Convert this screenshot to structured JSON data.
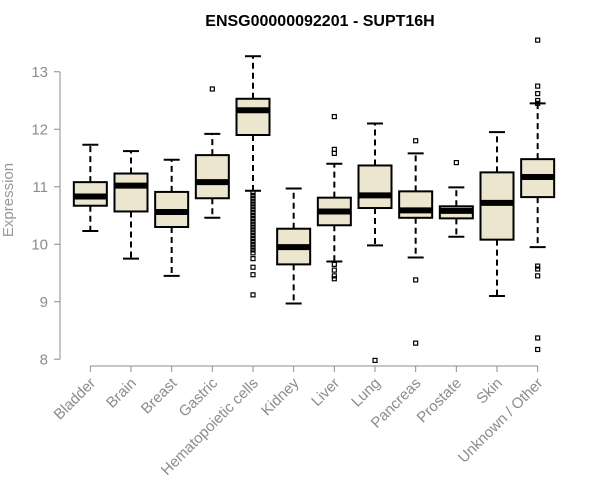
{
  "chart_data": {
    "type": "boxplot",
    "title": "ENSG00000092201 - SUPT16H",
    "xlabel": "",
    "ylabel": "Expression",
    "ylim": [
      7.9,
      13.9
    ],
    "yticks": [
      8,
      9,
      10,
      11,
      12,
      13
    ],
    "grid": false,
    "colors": {
      "box_fill": "#ede6cf",
      "stroke": "#000000",
      "axis": "#8c8c8c"
    },
    "categories": [
      "Bladder",
      "Brain",
      "Breast",
      "Gastric",
      "Hematopoietic cells",
      "Kidney",
      "Liver",
      "Lung",
      "Pancreas",
      "Prostate",
      "Skin",
      "Unknown / Other"
    ],
    "series": [
      {
        "name": "Bladder",
        "min": 10.23,
        "q1": 10.67,
        "median": 10.83,
        "q3": 11.08,
        "max": 11.73,
        "outliers": []
      },
      {
        "name": "Brain",
        "min": 9.75,
        "q1": 10.57,
        "median": 11.02,
        "q3": 11.23,
        "max": 11.62,
        "outliers": []
      },
      {
        "name": "Breast",
        "min": 9.45,
        "q1": 10.3,
        "median": 10.56,
        "q3": 10.91,
        "max": 11.47,
        "outliers": []
      },
      {
        "name": "Gastric",
        "min": 10.46,
        "q1": 10.8,
        "median": 11.08,
        "q3": 11.55,
        "max": 11.92,
        "outliers": [
          12.7
        ]
      },
      {
        "name": "Hematopoietic cells",
        "min": 10.93,
        "q1": 11.9,
        "median": 12.33,
        "q3": 12.53,
        "max": 13.27,
        "outliers": [
          10.9,
          10.85,
          10.8,
          10.75,
          10.7,
          10.65,
          10.6,
          10.55,
          10.5,
          10.45,
          10.4,
          10.35,
          10.3,
          10.25,
          10.2,
          10.15,
          10.1,
          10.05,
          10.0,
          9.95,
          9.9,
          9.85,
          9.75,
          9.6,
          9.47,
          9.12
        ]
      },
      {
        "name": "Kidney",
        "min": 8.97,
        "q1": 9.65,
        "median": 9.95,
        "q3": 10.27,
        "max": 10.97,
        "outliers": []
      },
      {
        "name": "Liver",
        "min": 9.7,
        "q1": 10.33,
        "median": 10.57,
        "q3": 10.81,
        "max": 11.4,
        "outliers": [
          12.22,
          11.65,
          11.58,
          9.65,
          9.55,
          9.45,
          9.4
        ]
      },
      {
        "name": "Lung",
        "min": 9.98,
        "q1": 10.63,
        "median": 10.85,
        "q3": 11.37,
        "max": 12.1,
        "outliers": [
          7.98
        ]
      },
      {
        "name": "Pancreas",
        "min": 9.77,
        "q1": 10.46,
        "median": 10.59,
        "q3": 10.92,
        "max": 11.58,
        "outliers": [
          11.8,
          9.38,
          8.28
        ]
      },
      {
        "name": "Prostate",
        "min": 10.13,
        "q1": 10.45,
        "median": 10.58,
        "q3": 10.66,
        "max": 10.99,
        "outliers": [
          11.42
        ]
      },
      {
        "name": "Skin",
        "min": 9.1,
        "q1": 10.08,
        "median": 10.72,
        "q3": 11.25,
        "max": 11.95,
        "outliers": []
      },
      {
        "name": "Unknown / Other",
        "min": 9.95,
        "q1": 10.82,
        "median": 11.17,
        "q3": 11.48,
        "max": 12.45,
        "outliers": [
          13.55,
          12.75,
          12.62,
          12.5,
          12.45,
          9.62,
          9.57,
          9.45,
          8.37,
          8.17
        ]
      }
    ]
  }
}
